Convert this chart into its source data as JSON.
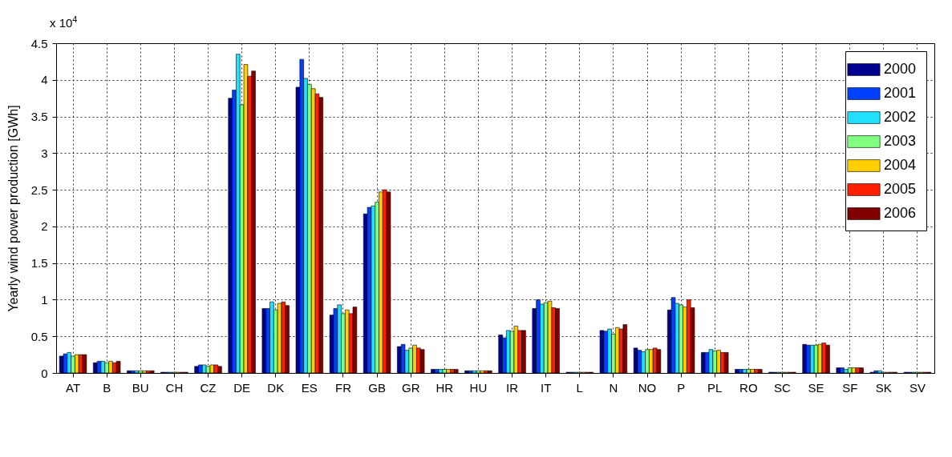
{
  "chart_data": {
    "type": "bar",
    "ylabel": "Yearly wind power production [GWh]",
    "annotations": [
      "x 10$^{4}$"
    ],
    "categories": [
      "AT",
      "B",
      "BU",
      "CH",
      "CZ",
      "DE",
      "DK",
      "ES",
      "FR",
      "GB",
      "GR",
      "HR",
      "HU",
      "IR",
      "IT",
      "L",
      "N",
      "NO",
      "P",
      "PL",
      "RO",
      "SC",
      "SE",
      "SF",
      "SK",
      "SV"
    ],
    "series": [
      {
        "name": "2000",
        "color": "#00008f",
        "values": [
          0.23,
          0.14,
          0.03,
          0.01,
          0.09,
          3.75,
          0.88,
          3.9,
          0.79,
          2.17,
          0.36,
          0.05,
          0.03,
          0.52,
          0.88,
          0.01,
          0.58,
          0.34,
          0.86,
          0.28,
          0.05,
          0.01,
          0.39,
          0.07,
          0.01,
          0.01
        ]
      },
      {
        "name": "2001",
        "color": "#0040ff",
        "values": [
          0.26,
          0.16,
          0.03,
          0.01,
          0.11,
          3.86,
          0.88,
          4.28,
          0.88,
          2.26,
          0.39,
          0.05,
          0.03,
          0.48,
          1.0,
          0.01,
          0.57,
          0.31,
          1.03,
          0.28,
          0.05,
          0.01,
          0.38,
          0.07,
          0.03,
          0.01
        ]
      },
      {
        "name": "2002",
        "color": "#20dfff",
        "values": [
          0.28,
          0.16,
          0.03,
          0.01,
          0.11,
          4.35,
          0.97,
          4.02,
          0.93,
          2.28,
          0.31,
          0.05,
          0.03,
          0.58,
          0.94,
          0.01,
          0.6,
          0.29,
          0.95,
          0.32,
          0.05,
          0.01,
          0.38,
          0.05,
          0.03,
          0.01
        ]
      },
      {
        "name": "2003",
        "color": "#80ff80",
        "values": [
          0.23,
          0.14,
          0.03,
          0.01,
          0.09,
          3.66,
          0.86,
          3.94,
          0.81,
          2.33,
          0.34,
          0.05,
          0.03,
          0.57,
          0.96,
          0.01,
          0.53,
          0.32,
          0.93,
          0.3,
          0.05,
          0.01,
          0.38,
          0.07,
          0.01,
          0.01
        ]
      },
      {
        "name": "2004",
        "color": "#ffcf00",
        "values": [
          0.25,
          0.16,
          0.03,
          0.01,
          0.11,
          4.21,
          0.95,
          3.88,
          0.86,
          2.47,
          0.38,
          0.05,
          0.03,
          0.64,
          0.98,
          0.01,
          0.62,
          0.32,
          0.9,
          0.31,
          0.05,
          0.01,
          0.39,
          0.07,
          0.01,
          0.01
        ]
      },
      {
        "name": "2005",
        "color": "#ff2000",
        "values": [
          0.25,
          0.14,
          0.03,
          0.01,
          0.11,
          4.05,
          0.97,
          3.81,
          0.81,
          2.5,
          0.34,
          0.05,
          0.03,
          0.58,
          0.89,
          0.01,
          0.6,
          0.34,
          1.0,
          0.28,
          0.05,
          0.01,
          0.41,
          0.07,
          0.01,
          0.01
        ]
      },
      {
        "name": "2006",
        "color": "#800000",
        "values": [
          0.25,
          0.16,
          0.03,
          0.01,
          0.09,
          4.12,
          0.92,
          3.76,
          0.9,
          2.47,
          0.32,
          0.05,
          0.03,
          0.58,
          0.88,
          0.01,
          0.66,
          0.32,
          0.89,
          0.28,
          0.05,
          0.01,
          0.38,
          0.07,
          0.01,
          0.01
        ]
      }
    ],
    "ylim": [
      0,
      4.5
    ],
    "yticks": [
      0,
      0.5,
      1,
      1.5,
      2,
      2.5,
      3,
      3.5,
      4,
      4.5
    ],
    "grid": true,
    "legend": "top right"
  }
}
